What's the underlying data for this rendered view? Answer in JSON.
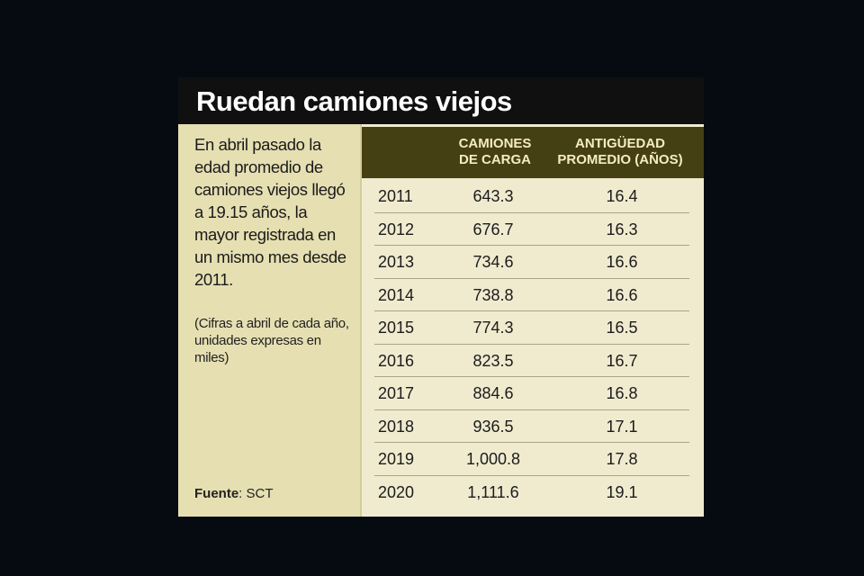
{
  "title": "Ruedan camiones viejos",
  "description": "En abril pasado la edad promedio de camiones viejos llegó a 19.15 años, la mayor registrada en un mismo mes desde 2011.",
  "note": "(Cifras a abril de cada año, unidades expresas en miles)",
  "source": {
    "label": "Fuente",
    "value": ": SCT"
  },
  "colors": {
    "title_bg": "#101010",
    "panel_bg": "#e6dfb2",
    "header_bg": "#453f14",
    "table_bg": "#f0ebcf"
  },
  "chart_data": {
    "type": "table",
    "columns": [
      "",
      "CAMIONES DE CARGA",
      "ANTIGÜEDAD PROMEDIO (AÑOS)"
    ],
    "rows": [
      {
        "year": "2011",
        "trucks": "643.3",
        "age": "16.4"
      },
      {
        "year": "2012",
        "trucks": "676.7",
        "age": "16.3"
      },
      {
        "year": "2013",
        "trucks": "734.6",
        "age": "16.6"
      },
      {
        "year": "2014",
        "trucks": "738.8",
        "age": "16.6"
      },
      {
        "year": "2015",
        "trucks": "774.3",
        "age": "16.5"
      },
      {
        "year": "2016",
        "trucks": "823.5",
        "age": "16.7"
      },
      {
        "year": "2017",
        "trucks": "884.6",
        "age": "16.8"
      },
      {
        "year": "2018",
        "trucks": "936.5",
        "age": "17.1"
      },
      {
        "year": "2019",
        "trucks": "1,000.8",
        "age": "17.8"
      },
      {
        "year": "2020",
        "trucks": "1,111.6",
        "age": "19.1"
      }
    ]
  }
}
